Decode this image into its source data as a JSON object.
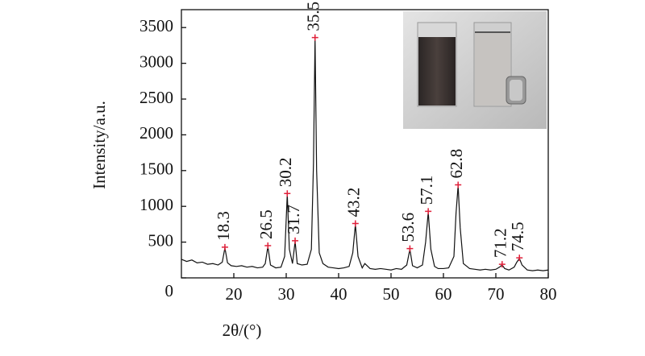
{
  "chart_data": {
    "type": "line",
    "x_label": "2θ/(°)",
    "y_label": "Intensity/a.u.",
    "xlim": [
      10,
      80
    ],
    "xticks": [
      20,
      30,
      40,
      50,
      60,
      70,
      80
    ],
    "ylim": [
      0,
      3750
    ],
    "yticks": [
      0,
      500,
      1000,
      1500,
      2000,
      2500,
      3000,
      3500
    ],
    "series": [
      {
        "color": "#111111",
        "x": [
          10,
          11,
          12,
          13,
          14,
          15,
          16,
          17,
          17.8,
          18.3,
          18.8,
          19.5,
          20.5,
          21.5,
          22.5,
          23.5,
          24.5,
          25.5,
          26,
          26.5,
          27,
          28,
          29,
          29.7,
          30.2,
          30.6,
          31.2,
          31.7,
          32.1,
          33,
          34,
          34.8,
          35.2,
          35.5,
          35.8,
          36.3,
          37,
          38,
          39,
          40,
          41,
          42,
          42.7,
          43.2,
          43.7,
          44.5,
          45,
          46,
          47,
          48,
          49,
          50,
          51,
          52,
          53,
          53.6,
          54.1,
          55,
          56,
          56.6,
          57.1,
          57.6,
          58.3,
          59,
          60,
          61,
          62,
          62.4,
          62.8,
          63.2,
          63.8,
          65,
          66,
          67,
          68,
          69,
          70,
          70.7,
          71.2,
          71.7,
          72.5,
          73.5,
          74,
          74.5,
          75,
          76,
          77,
          78,
          79,
          80
        ],
        "values": [
          260,
          230,
          250,
          210,
          220,
          190,
          200,
          180,
          220,
          420,
          210,
          170,
          160,
          170,
          150,
          160,
          140,
          150,
          200,
          440,
          180,
          140,
          150,
          300,
          1170,
          400,
          200,
          510,
          200,
          180,
          190,
          400,
          1600,
          3350,
          1500,
          350,
          200,
          150,
          140,
          130,
          140,
          160,
          350,
          750,
          300,
          140,
          200,
          130,
          120,
          130,
          120,
          110,
          130,
          120,
          180,
          400,
          170,
          140,
          180,
          500,
          920,
          400,
          160,
          130,
          130,
          140,
          300,
          900,
          1290,
          700,
          200,
          130,
          120,
          110,
          120,
          110,
          120,
          150,
          180,
          130,
          110,
          150,
          220,
          270,
          180,
          110,
          100,
          110,
          100,
          110
        ]
      }
    ],
    "peaks": {
      "color": "#e0203a",
      "x": [
        18.3,
        26.5,
        30.2,
        31.7,
        35.5,
        43.2,
        53.6,
        57.1,
        62.8,
        71.2,
        74.5
      ],
      "values": [
        430,
        450,
        1180,
        520,
        3360,
        760,
        410,
        930,
        1300,
        190,
        280
      ]
    }
  }
}
